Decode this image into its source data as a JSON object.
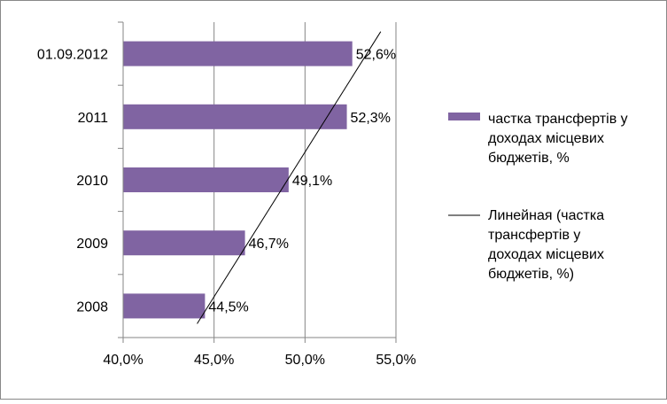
{
  "chart_data": {
    "type": "bar",
    "orientation": "horizontal",
    "categories": [
      "2008",
      "2009",
      "2010",
      "2011",
      "01.09.2012"
    ],
    "series": [
      {
        "name": "частка трансфертів у доходах місцевих бюджетів, %",
        "values": [
          44.5,
          46.7,
          49.1,
          52.3,
          52.6
        ],
        "labels": [
          "44,5%",
          "46,7%",
          "49,1%",
          "52,3%",
          "52,6%"
        ],
        "color": "#8064A2"
      }
    ],
    "trendline": {
      "type": "linear",
      "name": "Линейная (частка трансфертів у доходах місцевих бюджетів, %)",
      "color": "#000000"
    },
    "xlim": [
      40,
      55
    ],
    "x_ticks": [
      40,
      45,
      50,
      55
    ],
    "x_tick_labels": [
      "40,0%",
      "45,0%",
      "50,0%",
      "55,0%"
    ],
    "grid": "vertical",
    "legend_position": "right",
    "legend_lines": [
      [
        "частка трансфертів у",
        "доходах місцевих",
        "бюджетів, %"
      ],
      [
        "Линейная (частка",
        "трансфертів у",
        "доходах місцевих",
        "бюджетів, %)"
      ]
    ],
    "title": "",
    "xlabel": "",
    "ylabel": ""
  }
}
